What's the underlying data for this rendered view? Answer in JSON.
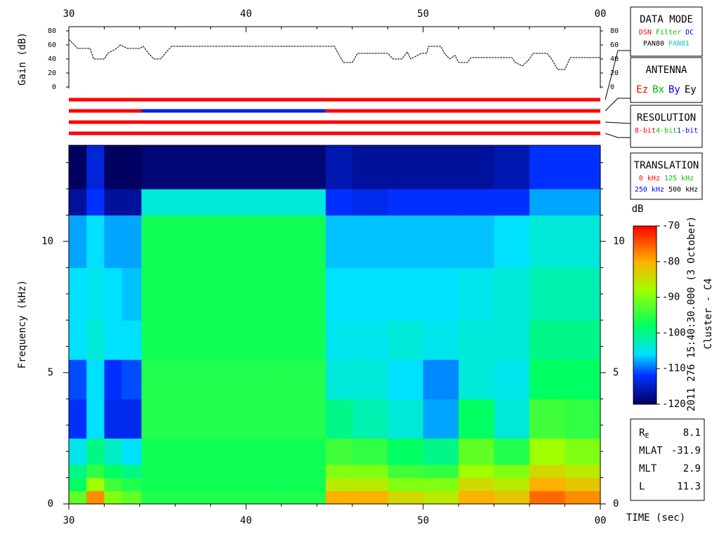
{
  "chart_data": [
    {
      "type": "line",
      "ylabel": "Gain (dB)",
      "xlim": [
        30,
        60
      ],
      "xticks": [
        30,
        40,
        50,
        {
          "value": 60,
          "label": "00"
        }
      ],
      "xminorticks": [
        32,
        34,
        36,
        38,
        42,
        44,
        46,
        48,
        52,
        54,
        56,
        58
      ],
      "ylim": [
        0,
        80
      ],
      "yticks": [
        0,
        20,
        40,
        60,
        80
      ],
      "color": "#000000",
      "x": [
        30,
        30.5,
        31.2,
        31.4,
        32,
        32.2,
        32.7,
        32.9,
        33.3,
        34.0,
        34.2,
        34.5,
        34.8,
        35.2,
        35.5,
        35.8,
        45,
        45.2,
        45.5,
        46,
        46.3,
        48,
        48.3,
        48.8,
        49.1,
        49.3,
        49.9,
        50.2,
        50.3,
        51,
        51.2,
        51.5,
        51.8,
        52,
        52.5,
        52.7,
        55,
        55.2,
        55.6,
        56,
        56.2,
        57,
        57.3,
        57.6,
        58,
        58.3,
        60
      ],
      "values": [
        68,
        55,
        55,
        40,
        40,
        48,
        55,
        60,
        55,
        55,
        58,
        48,
        40,
        40,
        50,
        58,
        58,
        48,
        35,
        35,
        48,
        48,
        40,
        40,
        50,
        40,
        48,
        48,
        58,
        58,
        48,
        40,
        45,
        35,
        35,
        42,
        42,
        35,
        30,
        40,
        48,
        48,
        38,
        25,
        25,
        42,
        42
      ]
    },
    {
      "type": "heatmap",
      "ylabel": "Frequency (kHz)",
      "xlabel": "TIME (sec)",
      "xlim": [
        30,
        60
      ],
      "xticks": [
        30,
        40,
        50,
        {
          "value": 60,
          "label": "00"
        }
      ],
      "xminorticks": [
        32,
        34,
        36,
        38,
        42,
        44,
        46,
        48,
        52,
        54,
        56,
        58
      ],
      "ylim": [
        0,
        13.66
      ],
      "yticks": [
        0,
        5,
        10
      ],
      "yminorticks": [
        1,
        2,
        3,
        4,
        6,
        7,
        8,
        9,
        11,
        12,
        13
      ],
      "x_edges": [
        30,
        31,
        32,
        33,
        34.1,
        36,
        38,
        40,
        42,
        44.5,
        46,
        48,
        50,
        52,
        54,
        56,
        58,
        60
      ],
      "y_edges": [
        0,
        0.5,
        1,
        1.5,
        2.5,
        4,
        5.5,
        7,
        9,
        11,
        12,
        13.66
      ],
      "z": [
        [
          -92,
          -78,
          -90,
          -92,
          -96,
          -96,
          -96,
          -96,
          -96,
          -80,
          -80,
          -84,
          -86,
          -80,
          -82,
          -76,
          -78
        ],
        [
          -98,
          -88,
          -94,
          -96,
          -97,
          -97,
          -97,
          -97,
          -97,
          -86,
          -86,
          -90,
          -90,
          -84,
          -86,
          -80,
          -82
        ],
        [
          -100,
          -95,
          -98,
          -100,
          -97,
          -97,
          -97,
          -97,
          -97,
          -90,
          -90,
          -94,
          -95,
          -88,
          -90,
          -84,
          -86
        ],
        [
          -105,
          -100,
          -103,
          -106,
          -97,
          -97,
          -97,
          -97,
          -97,
          -94,
          -95,
          -98,
          -100,
          -92,
          -96,
          -88,
          -90
        ],
        [
          -112,
          -106,
          -113,
          -113,
          -96,
          -96,
          -96,
          -96,
          -96,
          -100,
          -102,
          -104,
          -108,
          -98,
          -104,
          -94,
          -95
        ],
        [
          -111,
          -106,
          -112,
          -111,
          -96,
          -96,
          -96,
          -96,
          -96,
          -104,
          -104,
          -106,
          -109,
          -104,
          -105,
          -98,
          -98
        ],
        [
          -106,
          -104,
          -106,
          -106,
          -97,
          -97,
          -97,
          -97,
          -97,
          -105,
          -105,
          -104,
          -105,
          -104,
          -104,
          -100,
          -100
        ],
        [
          -106,
          -105,
          -106,
          -107,
          -97,
          -97,
          -97,
          -97,
          -97,
          -106,
          -106,
          -106,
          -106,
          -105,
          -104,
          -102,
          -102
        ],
        [
          -108,
          -106,
          -108,
          -108,
          -97,
          -97,
          -97,
          -97,
          -97,
          -107,
          -107,
          -107,
          -107,
          -107,
          -106,
          -104,
          -104
        ],
        [
          -117,
          -112,
          -117,
          -117,
          -104,
          -104,
          -104,
          -104,
          -104,
          -112,
          -113,
          -112,
          -112,
          -112,
          -112,
          -108,
          -108
        ],
        [
          -120,
          -114,
          -120,
          -120,
          -119,
          -119,
          -119,
          -119,
          -119,
          -116,
          -117,
          -117,
          -117,
          -117,
          -116,
          -112,
          -112
        ]
      ],
      "zlim": [
        -120,
        -70
      ],
      "zticks": [
        -120,
        -110,
        -100,
        -90,
        -80,
        -70
      ],
      "colorbar_label": "dB",
      "colorscale": [
        {
          "value": -120,
          "color": "#000060"
        },
        {
          "value": -112,
          "color": "#0030ff"
        },
        {
          "value": -106,
          "color": "#00e0ff"
        },
        {
          "value": -98,
          "color": "#00ff60"
        },
        {
          "value": -88,
          "color": "#a0ff00"
        },
        {
          "value": -80,
          "color": "#ffb000"
        },
        {
          "value": -70,
          "color": "#ff0000"
        }
      ]
    }
  ],
  "status_lines": [
    [
      {
        "from": 30,
        "to": 60,
        "color": "#ff0000"
      }
    ],
    [
      {
        "from": 30,
        "to": 34.1,
        "color": "#ff0000"
      },
      {
        "from": 34.1,
        "to": 44.5,
        "color": "#0020e0"
      },
      {
        "from": 44.5,
        "to": 60,
        "color": "#ff0000"
      }
    ],
    [
      {
        "from": 30,
        "to": 60,
        "color": "#ff0000"
      }
    ],
    [
      {
        "from": 30,
        "to": 60,
        "color": "#ff0000"
      }
    ]
  ],
  "panels": [
    {
      "title": "DATA MODE",
      "rows": [
        [
          {
            "text": "DSN",
            "color": "#ff0000"
          },
          {
            "text": "Filter",
            "color": "#00c000"
          },
          {
            "text": "DC",
            "color": "#0000ff"
          }
        ],
        [
          {
            "text": "PAN80",
            "color": "#000000"
          },
          {
            "text": "PAN81",
            "color": "#00c8d0"
          }
        ]
      ]
    },
    {
      "title": "ANTENNA",
      "rows": [
        [
          {
            "text": "Ez",
            "color": "#ff0000"
          },
          {
            "text": "Bx",
            "color": "#00c000"
          },
          {
            "text": "By",
            "color": "#0000ff"
          },
          {
            "text": "Ey",
            "color": "#000000"
          }
        ]
      ]
    },
    {
      "title": "RESOLUTION",
      "rows": [
        [
          {
            "text": "8-bit",
            "color": "#ff0000"
          },
          {
            "text": "4-bit",
            "color": "#00c000"
          },
          {
            "text": "1-bit",
            "color": "#0000ff"
          }
        ]
      ]
    },
    {
      "title": "TRANSLATION",
      "rows": [
        [
          {
            "text": "0 kHz",
            "color": "#ff0000"
          },
          {
            "text": "125 kHz",
            "color": "#00c000"
          }
        ],
        [
          {
            "text": "250 kHz",
            "color": "#0000ff"
          },
          {
            "text": "500 kHz",
            "color": "#000000"
          }
        ]
      ]
    }
  ],
  "timestamp": "2011 276 15:40:30.000 (3 October)",
  "spacecraft": "Cluster - C4",
  "info": [
    {
      "label": "R",
      "sub": "E",
      "value": "8.1"
    },
    {
      "label": "MLAT",
      "value": "-31.9"
    },
    {
      "label": "MLT",
      "value": "2.9"
    },
    {
      "label": "L",
      "value": "11.3"
    }
  ]
}
